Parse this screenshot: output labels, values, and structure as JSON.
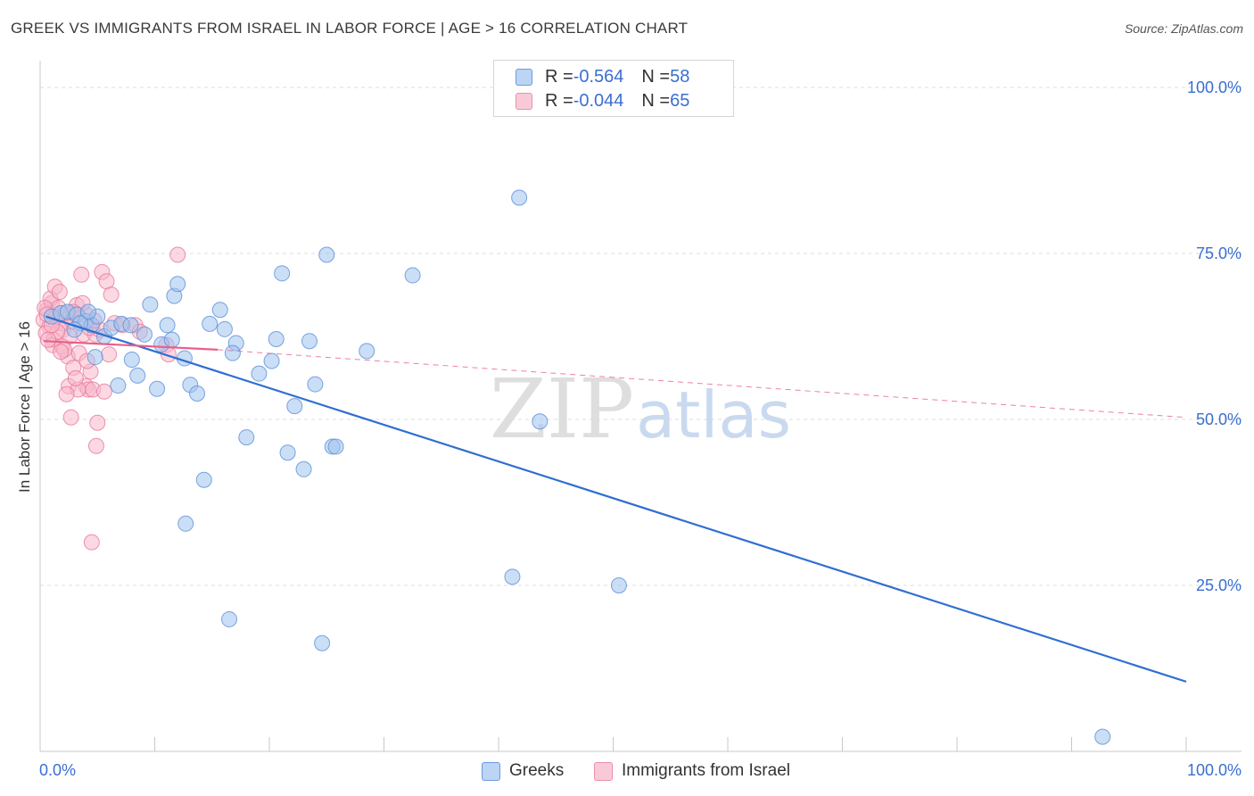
{
  "title": "GREEK VS IMMIGRANTS FROM ISRAEL IN LABOR FORCE | AGE > 16 CORRELATION CHART",
  "source": "Source: ZipAtlas.com",
  "watermark": {
    "zip": "ZIP",
    "atlas": "atlas"
  },
  "colors": {
    "blue_fill": "#9ec3ef",
    "blue_stroke": "#5b8ed8",
    "blue_line": "#2f6fd0",
    "pink_fill": "#f7b8cb",
    "pink_stroke": "#e8789a",
    "pink_line": "#e8608a",
    "value_text": "#3a6fd0",
    "grid": "#dcdcdc"
  },
  "legend": {
    "rows": [
      {
        "r_label": "R = ",
        "r_value": "-0.564",
        "n_label": "N = ",
        "n_value": "58"
      },
      {
        "r_label": "R = ",
        "r_value": "-0.044",
        "n_label": "N = ",
        "n_value": "65"
      }
    ]
  },
  "bottom_legend": {
    "greeks": "Greeks",
    "israel": "Immigrants from Israel"
  },
  "chart_data": {
    "type": "scatter",
    "title": "GREEK VS IMMIGRANTS FROM ISRAEL IN LABOR FORCE | AGE > 16 CORRELATION CHART",
    "ylabel": "In Labor Force | Age > 16",
    "xlabel": "",
    "xlim": [
      0,
      100
    ],
    "ylim": [
      0,
      105
    ],
    "x_tick_labels": [
      "0.0%",
      "100.0%"
    ],
    "y_ticks": [
      {
        "value": 25,
        "label": "25.0%"
      },
      {
        "value": 50,
        "label": "50.0%"
      },
      {
        "value": 75,
        "label": "75.0%"
      },
      {
        "value": 100,
        "label": "100.0%"
      }
    ],
    "grid": "horizontal dashed",
    "legend_placement": "top-center",
    "series": [
      {
        "name": "Greeks",
        "r": -0.564,
        "n": 58,
        "trend": {
          "x": [
            0.5,
            100
          ],
          "y": [
            65.5,
            10.5
          ]
        },
        "points": [
          [
            1.0,
            65.5
          ],
          [
            1.8,
            66.0
          ],
          [
            2.4,
            66.2
          ],
          [
            3.2,
            65.8
          ],
          [
            4.0,
            64.8
          ],
          [
            4.5,
            64.2
          ],
          [
            5.0,
            65.5
          ],
          [
            4.2,
            66.2
          ],
          [
            3.5,
            64.5
          ],
          [
            5.6,
            62.5
          ],
          [
            6.2,
            63.8
          ],
          [
            4.8,
            59.4
          ],
          [
            7.1,
            64.4
          ],
          [
            7.9,
            64.2
          ],
          [
            8.5,
            56.6
          ],
          [
            6.8,
            55.1
          ],
          [
            9.1,
            62.8
          ],
          [
            9.6,
            67.3
          ],
          [
            10.2,
            54.6
          ],
          [
            10.6,
            61.3
          ],
          [
            11.1,
            64.2
          ],
          [
            11.7,
            68.6
          ],
          [
            12.0,
            70.4
          ],
          [
            12.6,
            59.2
          ],
          [
            13.1,
            55.2
          ],
          [
            13.7,
            53.9
          ],
          [
            14.8,
            64.4
          ],
          [
            15.7,
            66.5
          ],
          [
            16.1,
            63.6
          ],
          [
            17.1,
            61.5
          ],
          [
            16.8,
            60.0
          ],
          [
            18.0,
            47.3
          ],
          [
            19.1,
            56.9
          ],
          [
            20.2,
            58.8
          ],
          [
            20.6,
            62.1
          ],
          [
            21.1,
            72.0
          ],
          [
            22.2,
            52.0
          ],
          [
            21.6,
            45.0
          ],
          [
            23.0,
            42.5
          ],
          [
            23.5,
            61.8
          ],
          [
            24.0,
            55.3
          ],
          [
            25.0,
            74.8
          ],
          [
            25.5,
            45.9
          ],
          [
            25.8,
            45.9
          ],
          [
            28.5,
            60.3
          ],
          [
            32.5,
            71.7
          ],
          [
            41.2,
            26.3
          ],
          [
            41.8,
            83.4
          ],
          [
            43.6,
            49.7
          ],
          [
            50.5,
            25.0
          ],
          [
            14.3,
            40.9
          ],
          [
            12.7,
            34.3
          ],
          [
            16.5,
            19.9
          ],
          [
            24.6,
            16.3
          ],
          [
            92.7,
            2.2
          ],
          [
            11.5,
            62.0
          ],
          [
            8.0,
            59.0
          ],
          [
            3.0,
            63.5
          ]
        ]
      },
      {
        "name": "Immigrants from Israel",
        "r": -0.044,
        "n": 65,
        "trend": {
          "x": [
            0.3,
            15.5
          ],
          "y": [
            61.8,
            60.5
          ]
        },
        "trend_extended": {
          "x": [
            15.5,
            100
          ],
          "y": [
            60.5,
            50.3
          ]
        },
        "points": [
          [
            0.3,
            65.0
          ],
          [
            0.6,
            66.5
          ],
          [
            0.8,
            64.0
          ],
          [
            1.0,
            67.5
          ],
          [
            0.5,
            63.0
          ],
          [
            1.2,
            62.0
          ],
          [
            1.4,
            65.5
          ],
          [
            0.9,
            68.2
          ],
          [
            1.6,
            66.8
          ],
          [
            1.8,
            64.5
          ],
          [
            1.1,
            61.2
          ],
          [
            2.0,
            63.5
          ],
          [
            2.2,
            66.0
          ],
          [
            1.3,
            70.0
          ],
          [
            1.7,
            69.2
          ],
          [
            2.4,
            59.5
          ],
          [
            2.6,
            62.5
          ],
          [
            2.8,
            64.8
          ],
          [
            3.0,
            65.8
          ],
          [
            3.2,
            67.2
          ],
          [
            2.5,
            55.0
          ],
          [
            2.9,
            57.8
          ],
          [
            3.4,
            60.0
          ],
          [
            3.6,
            71.8
          ],
          [
            3.8,
            62.8
          ],
          [
            4.0,
            55.0
          ],
          [
            4.2,
            54.5
          ],
          [
            4.4,
            57.2
          ],
          [
            4.1,
            58.8
          ],
          [
            4.6,
            54.5
          ],
          [
            4.8,
            62.8
          ],
          [
            4.0,
            65.8
          ],
          [
            5.0,
            49.5
          ],
          [
            5.2,
            63.5
          ],
          [
            5.4,
            72.2
          ],
          [
            5.8,
            70.8
          ],
          [
            6.2,
            68.8
          ],
          [
            6.0,
            59.8
          ],
          [
            4.9,
            46.0
          ],
          [
            5.6,
            54.2
          ],
          [
            3.3,
            54.5
          ],
          [
            3.1,
            56.2
          ],
          [
            2.7,
            50.3
          ],
          [
            1.9,
            61.0
          ],
          [
            2.3,
            53.8
          ],
          [
            1.5,
            63.2
          ],
          [
            0.7,
            62.0
          ],
          [
            0.4,
            66.8
          ],
          [
            4.5,
            31.5
          ],
          [
            8.3,
            64.2
          ],
          [
            8.7,
            63.2
          ],
          [
            11.0,
            61.2
          ],
          [
            11.2,
            59.8
          ],
          [
            12.0,
            74.8
          ],
          [
            3.7,
            67.5
          ],
          [
            2.1,
            60.5
          ],
          [
            6.5,
            64.5
          ],
          [
            7.2,
            64.2
          ],
          [
            4.3,
            63.8
          ],
          [
            3.5,
            65.2
          ],
          [
            2.9,
            66.2
          ],
          [
            1.0,
            64.2
          ],
          [
            0.6,
            65.8
          ],
          [
            1.8,
            60.2
          ],
          [
            4.7,
            64.9
          ]
        ]
      }
    ]
  }
}
